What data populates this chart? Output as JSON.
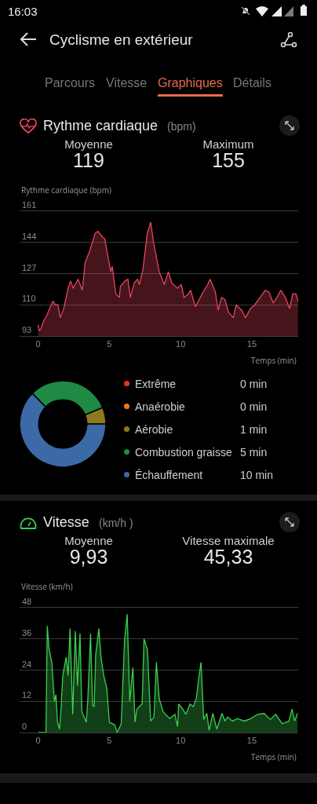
{
  "chart_data": [
    {
      "type": "other",
      "title": "Cyclisme en extérieur",
      "annotations": [
        "16:03",
        "Parcours",
        "Vitesse",
        "Graphiques",
        "Détails"
      ]
    },
    {
      "type": "area",
      "title": "Rythme cardiaque",
      "subtitle": "(bpm)",
      "annotations": [
        "Moyenne",
        "119",
        "Maximum",
        "155"
      ],
      "ylabel": "Rythme cardiaque (bpm)",
      "xlabel": "Temps (min)",
      "x": [
        0,
        0.07,
        0.2,
        0.37,
        0.6,
        0.8,
        1.05,
        1.2,
        1.4,
        1.55,
        1.8,
        2.1,
        2.28,
        2.46,
        2.8,
        3.1,
        3.3,
        3.6,
        4.0,
        4.2,
        4.5,
        4.67,
        5.1,
        5.2,
        5.45,
        5.7,
        5.77,
        6.1,
        6.3,
        6.47,
        6.75,
        6.98,
        7.1,
        7.35,
        7.66,
        7.9,
        8.1,
        8.5,
        8.86,
        9.14,
        9.37,
        9.78,
        10.05,
        10.24,
        10.55,
        10.7,
        11.03,
        11.25,
        11.5,
        11.9,
        12.07,
        12.44,
        12.63,
        12.87,
        13.1,
        13.36,
        13.7,
        13.9,
        14.28,
        14.56,
        14.9,
        15.2,
        15.48,
        15.94,
        16.2,
        16.5,
        16.76,
        17.04,
        17.35,
        17.65,
        17.87,
        18.09,
        18.24
      ],
      "series": [
        {
          "color": "#e8445e",
          "values": [
            99,
            96,
            97,
            101,
            104,
            108,
            112,
            110,
            110,
            103,
            108,
            119,
            123,
            119,
            124,
            118,
            133,
            139,
            149,
            150,
            147,
            146,
            128,
            131,
            116,
            114,
            120,
            123,
            124,
            114,
            122,
            124,
            121,
            129,
            149,
            155,
            144,
            128,
            121,
            128,
            122,
            119,
            121,
            114,
            116,
            118,
            109,
            112,
            116,
            121,
            124,
            117,
            107,
            114,
            113,
            106,
            103,
            110,
            107,
            103,
            108,
            110,
            113,
            118,
            117,
            111,
            114,
            118,
            114,
            108,
            116,
            116,
            112
          ]
        }
      ],
      "xlim": [
        -1.3,
        18.25
      ],
      "xticks": [
        0,
        5,
        10,
        15
      ],
      "ylim": [
        93,
        161
      ],
      "yticks": [
        93,
        110,
        127,
        144,
        161
      ],
      "grid": "y",
      "legend": false
    },
    {
      "type": "donut",
      "categories": [
        "Extrême",
        "Anaérobie",
        "Aérobie",
        "Combustion graisse",
        "Échauffement"
      ],
      "values": [
        0,
        0,
        1,
        5,
        10
      ],
      "colors": [
        "#e8302a",
        "#e87a22",
        "#8c7a1c",
        "#1e8a44",
        "#3b6aa6"
      ],
      "value_labels": [
        "0 min",
        "0 min",
        "1 min",
        "5 min",
        "10 min"
      ],
      "legend": "right"
    },
    {
      "type": "area",
      "title": "Vitesse",
      "subtitle": "(km/h )",
      "annotations": [
        "Moyenne",
        "9,93",
        "Vitesse maximale",
        "45,33"
      ],
      "ylabel": "Vitesse (km/h)",
      "xlabel": "Temps (min)",
      "x": [
        0,
        0.55,
        0.64,
        0.77,
        0.96,
        1.14,
        1.25,
        1.36,
        1.5,
        1.6,
        1.73,
        1.97,
        2.1,
        2.24,
        2.43,
        2.61,
        2.76,
        2.94,
        3.07,
        3.38,
        3.49,
        3.68,
        3.82,
        3.93,
        4.04,
        4.26,
        4.41,
        4.6,
        4.82,
        5.0,
        5.37,
        5.55,
        5.83,
        6.07,
        6.25,
        6.43,
        6.65,
        6.8,
        6.93,
        7.3,
        7.43,
        7.67,
        7.9,
        8.13,
        8.3,
        8.5,
        8.77,
        9.23,
        9.6,
        9.78,
        9.87,
        10.15,
        10.37,
        10.66,
        10.88,
        11.1,
        11.25,
        11.43,
        11.62,
        11.84,
        12.0,
        12.26,
        12.54,
        12.9,
        13.12,
        13.3,
        13.64,
        14.0,
        14.47,
        14.93,
        15.4,
        15.85,
        16.3,
        16.67,
        17.13,
        17.6,
        17.82,
        18.0,
        18.2
      ],
      "series": [
        {
          "color": "#3ccf4e",
          "values": [
            0,
            0,
            41,
            32,
            27,
            12,
            14.5,
            4,
            1.3,
            9,
            22,
            29,
            22,
            40,
            7,
            39,
            18,
            38,
            8,
            4,
            13,
            38,
            10.5,
            10,
            30,
            40,
            29,
            22,
            17,
            4,
            3,
            0,
            3.4,
            36,
            45.5,
            12,
            25,
            4,
            9,
            11,
            36,
            32,
            4.4,
            6,
            27,
            13,
            8,
            5.4,
            7,
            2.3,
            11,
            9,
            7,
            11,
            10,
            13,
            20,
            27,
            5,
            7.4,
            0.8,
            7.4,
            1.3,
            7.4,
            4.4,
            6,
            4.4,
            5.4,
            4.4,
            5.4,
            7,
            7.4,
            5,
            7,
            3.4,
            4.4,
            9,
            4.4,
            7.4
          ]
        }
      ],
      "xlim": [
        -1.3,
        18.25
      ],
      "xticks": [
        0,
        5,
        10,
        15
      ],
      "ylim": [
        0,
        48
      ],
      "yticks": [
        0,
        12,
        24,
        36,
        48
      ],
      "grid": "y",
      "legend": false
    }
  ]
}
